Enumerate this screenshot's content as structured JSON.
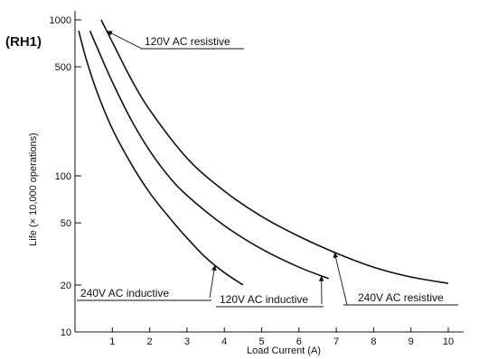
{
  "chart_data": {
    "type": "line",
    "title": "(RH1)",
    "xlabel": "Load Current (A)",
    "ylabel": "Life (× 10,000 operations)",
    "x_scale": "linear",
    "y_scale": "log",
    "xlim": [
      0,
      10.3
    ],
    "ylim": [
      10,
      1000
    ],
    "x_ticks": [
      1,
      2,
      3,
      4,
      5,
      6,
      7,
      8,
      9,
      10
    ],
    "y_ticks": [
      10,
      20,
      50,
      100,
      500,
      1000
    ],
    "grid": false,
    "legend": "none",
    "series": [
      {
        "name": "240V AC inductive",
        "x": [
          0.1,
          0.3,
          0.6,
          1.0,
          1.5,
          2.0,
          2.5,
          3.0,
          3.5,
          4.0,
          4.5
        ],
        "y": [
          850,
          560,
          340,
          200,
          120,
          78,
          55,
          40,
          30,
          24,
          20
        ]
      },
      {
        "name": "120V AC inductive",
        "x": [
          0.4,
          0.7,
          1.0,
          1.5,
          2.0,
          2.5,
          3.0,
          4.0,
          5.0,
          6.0,
          6.8
        ],
        "y": [
          850,
          580,
          400,
          230,
          145,
          100,
          75,
          48,
          34,
          26,
          22
        ]
      },
      {
        "name": "120V AC resistive",
        "x": [
          0.7,
          1.0,
          1.5,
          2.0,
          3.0,
          4.0,
          5.0,
          6.0,
          7.0,
          8.0,
          9.0,
          10.0
        ],
        "y": [
          1000,
          720,
          420,
          265,
          130,
          80,
          55,
          41,
          32,
          26,
          22.5,
          20.5
        ]
      }
    ],
    "annotations": [
      {
        "text": "120V AC resistive",
        "series": 2,
        "at_x": 0.85
      },
      {
        "text": "240V AC inductive",
        "series": 0,
        "at_x": 3.75
      },
      {
        "text": "120V AC inductive",
        "series": 1,
        "at_x": 6.6
      },
      {
        "text": "240V AC resistive",
        "series": 2,
        "at_x": 6.95
      }
    ]
  }
}
